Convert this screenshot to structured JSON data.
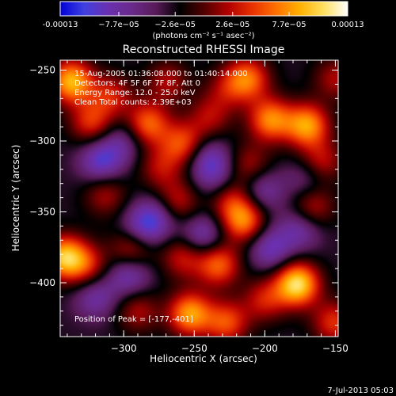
{
  "chart_data": {
    "type": "heatmap",
    "title": "Reconstructed RHESSI Image",
    "xlabel": "Heliocentric X (arcsec)",
    "ylabel": "Heliocentric Y (arcsec)",
    "xlim": [
      -345,
      -148
    ],
    "ylim": [
      -438,
      -243
    ],
    "x_ticks": [
      -300,
      -250,
      -200,
      -150
    ],
    "y_ticks": [
      -250,
      -300,
      -350,
      -400
    ],
    "colorbar": {
      "min": -0.00013,
      "max": 0.00013,
      "ticks": [
        "-0.00013",
        "−7.7e−05",
        "−2.6e−05",
        "2.6e−05",
        "7.7e−05",
        "0.00013"
      ],
      "tick_values": [
        -0.00013,
        -7.7e-05,
        -2.6e-05,
        2.6e-05,
        7.7e-05,
        0.00013
      ],
      "units_label": "(photons cm⁻² s⁻¹ asec⁻²)",
      "palette": [
        "#0000d8",
        "#4040e0",
        "#6a30b0",
        "#6a2a8a",
        "#581a58",
        "#000000",
        "#500000",
        "#b00000",
        "#e83000",
        "#ff7000",
        "#ffb000",
        "#ffe060",
        "#ffffff"
      ]
    },
    "info_lines": [
      "15-Aug-2005 01:36:08.000 to 01:40:14.000",
      "Detectors: 4F 5F 6F 7F 8F, Att 0",
      "Energy Range: 12.0 - 25.0 keV",
      "Clean     Total counts: 2.39E+03"
    ],
    "peak_label": "Position of Peak = [-177,-401]",
    "peak": {
      "x": -177,
      "y": -401
    },
    "features": [
      {
        "x": -337,
        "y": -258,
        "amp": 1.2
      },
      {
        "x": -323,
        "y": -287,
        "amp": 0.7
      },
      {
        "x": -309,
        "y": -268,
        "amp": 0.6
      },
      {
        "x": -269,
        "y": -258,
        "amp": 0.5
      },
      {
        "x": -283,
        "y": -288,
        "amp": 0.9
      },
      {
        "x": -258,
        "y": -302,
        "amp": 0.8
      },
      {
        "x": -239,
        "y": -283,
        "amp": 0.5
      },
      {
        "x": -227,
        "y": -263,
        "amp": 0.4
      },
      {
        "x": -212,
        "y": -256,
        "amp": 0.9
      },
      {
        "x": -196,
        "y": -285,
        "amp": 1.0
      },
      {
        "x": -211,
        "y": -317,
        "amp": 0.5
      },
      {
        "x": -170,
        "y": -289,
        "amp": 1.1
      },
      {
        "x": -150,
        "y": -256,
        "amp": 0.5
      },
      {
        "x": -160,
        "y": -315,
        "amp": 0.6
      },
      {
        "x": -274,
        "y": -319,
        "amp": 0.5
      },
      {
        "x": -313,
        "y": -338,
        "amp": 0.5
      },
      {
        "x": -262,
        "y": -343,
        "amp": 0.6
      },
      {
        "x": -215,
        "y": -356,
        "amp": 1.0
      },
      {
        "x": -225,
        "y": -340,
        "amp": 0.6
      },
      {
        "x": -166,
        "y": -346,
        "amp": 0.6
      },
      {
        "x": -342,
        "y": -382,
        "amp": 1.2
      },
      {
        "x": -326,
        "y": -388,
        "amp": 0.6
      },
      {
        "x": -294,
        "y": -376,
        "amp": 0.7
      },
      {
        "x": -258,
        "y": -382,
        "amp": 0.6
      },
      {
        "x": -233,
        "y": -387,
        "amp": 0.9
      },
      {
        "x": -253,
        "y": -422,
        "amp": 1.1
      },
      {
        "x": -227,
        "y": -428,
        "amp": 0.8
      },
      {
        "x": -200,
        "y": -412,
        "amp": 0.6
      },
      {
        "x": -177,
        "y": -401,
        "amp": 1.4
      },
      {
        "x": -151,
        "y": -428,
        "amp": 0.7
      },
      {
        "x": -290,
        "y": -420,
        "amp": 0.5
      },
      {
        "x": -316,
        "y": -314,
        "amp": -0.7
      },
      {
        "x": -300,
        "y": -300,
        "amp": -0.4
      },
      {
        "x": -240,
        "y": -313,
        "amp": -0.6
      },
      {
        "x": -202,
        "y": -335,
        "amp": -0.5
      },
      {
        "x": -287,
        "y": -362,
        "amp": -0.6
      },
      {
        "x": -276,
        "y": -353,
        "amp": -0.5
      },
      {
        "x": -244,
        "y": -367,
        "amp": -0.6
      },
      {
        "x": -175,
        "y": -362,
        "amp": -0.5
      },
      {
        "x": -196,
        "y": -376,
        "amp": -0.6
      },
      {
        "x": -320,
        "y": -410,
        "amp": -0.5
      },
      {
        "x": -296,
        "y": -394,
        "amp": -0.6
      },
      {
        "x": -233,
        "y": -328,
        "amp": -0.4
      },
      {
        "x": -170,
        "y": -327,
        "amp": -0.4
      }
    ]
  },
  "footer": {
    "timestamp": "7-Jul-2013 05:03"
  }
}
